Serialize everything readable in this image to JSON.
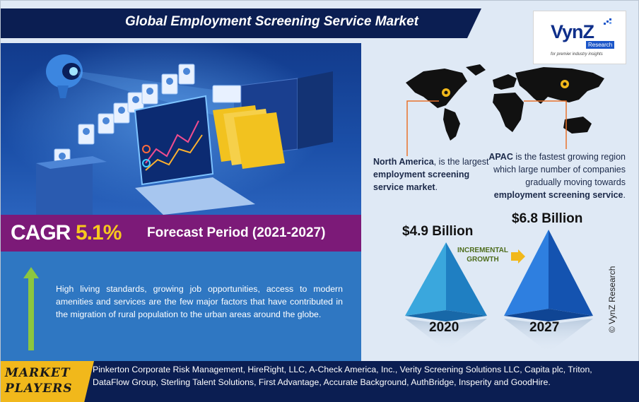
{
  "header": {
    "title": "Global Employment Screening Service Market"
  },
  "logo": {
    "name": "VynZ",
    "badge": "Research",
    "tagline": "for premier industry insights"
  },
  "cagr": {
    "label": "CAGR",
    "value": "5.1%",
    "forecast_period": "Forecast Period (2021-2027)"
  },
  "description": "High living standards, growing job opportunities, access to modern amenities and services are the few major factors that have contributed in the migration of rural population to the urban areas around the globe.",
  "regions": {
    "north_america": {
      "name": "North America",
      "text_1": ", is the largest ",
      "highlight": "employment screening service market",
      "text_2": "."
    },
    "apac": {
      "name": "APAC",
      "text_1": " is the fastest growing region which large number of companies gradually moving towards ",
      "highlight": "employment screening service",
      "text_2": "."
    }
  },
  "market_size": {
    "value_2020": "$4.9 Billion",
    "value_2027": "$6.8 Billion",
    "year_2020": "2020",
    "year_2027": "2027",
    "growth_label_1": "INCREMENTAL",
    "growth_label_2": "GROWTH"
  },
  "copyright": "© VynZ Research",
  "players": {
    "label_1": "MARKET",
    "label_2": "PLAYERS",
    "list": "Pinkerton Corporate Risk Management, HireRight, LLC, A-Check America, Inc., Verity Screening Solutions LLC, Capita plc, Triton, DataFlow Group, Sterling Talent Solutions, First Advantage, Accurate Background, AuthBridge, Insperity and GoodHire."
  },
  "colors": {
    "navy": "#0b1e52",
    "magenta": "#7c1a78",
    "gold": "#f7c81e",
    "blue_box": "#2f77c2",
    "arrow_green": "#8cc63f",
    "pyramid_light": "#2e9bd6",
    "pyramid_dark": "#1460b8"
  }
}
